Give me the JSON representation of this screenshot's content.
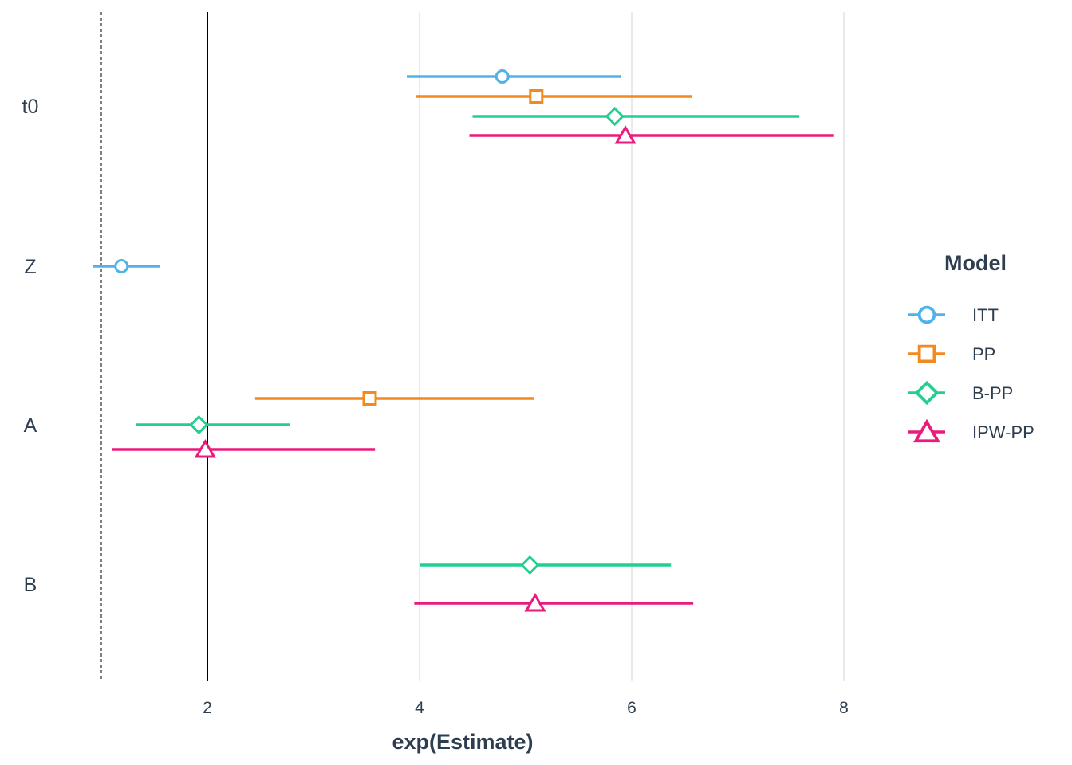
{
  "chart_data": {
    "type": "forest",
    "title": "",
    "xlabel": "exp(Estimate)",
    "ylabel": "",
    "xlim": [
      0.5,
      9.5
    ],
    "x_ticks": [
      2,
      4,
      6,
      8
    ],
    "x_tick_labels": [
      "2",
      "4",
      "6",
      "8"
    ],
    "reference_lines": [
      {
        "x": 1,
        "style": "dashed"
      },
      {
        "x": 2,
        "style": "solid"
      }
    ],
    "grid": "vertical major",
    "categories": [
      "t0",
      "Z",
      "A",
      "B"
    ],
    "legend": {
      "title": "Model",
      "placement": "right",
      "entries": [
        {
          "name": "ITT",
          "color": "#4fb3ea",
          "shape": "circle"
        },
        {
          "name": "PP",
          "color": "#f28a1e",
          "shape": "square"
        },
        {
          "name": "B-PP",
          "color": "#22cf8f",
          "shape": "diamond"
        },
        {
          "name": "IPW-PP",
          "color": "#ea1b7d",
          "shape": "triangle"
        }
      ]
    },
    "series": [
      {
        "name": "ITT",
        "points": [
          {
            "category": "t0",
            "estimate": 4.78,
            "lower": 3.88,
            "upper": 5.9
          },
          {
            "category": "Z",
            "estimate": 1.19,
            "lower": 0.92,
            "upper": 1.55
          }
        ]
      },
      {
        "name": "PP",
        "points": [
          {
            "category": "t0",
            "estimate": 5.1,
            "lower": 3.97,
            "upper": 6.57
          },
          {
            "category": "A",
            "estimate": 3.53,
            "lower": 2.45,
            "upper": 5.08
          }
        ]
      },
      {
        "name": "B-PP",
        "points": [
          {
            "category": "t0",
            "estimate": 5.84,
            "lower": 4.5,
            "upper": 7.58
          },
          {
            "category": "A",
            "estimate": 1.92,
            "lower": 1.33,
            "upper": 2.78
          },
          {
            "category": "B",
            "estimate": 5.04,
            "lower": 4.0,
            "upper": 6.37
          }
        ]
      },
      {
        "name": "IPW-PP",
        "points": [
          {
            "category": "t0",
            "estimate": 5.94,
            "lower": 4.47,
            "upper": 7.9
          },
          {
            "category": "A",
            "estimate": 1.98,
            "lower": 1.1,
            "upper": 3.58
          },
          {
            "category": "B",
            "estimate": 5.09,
            "lower": 3.95,
            "upper": 6.58
          }
        ]
      }
    ]
  }
}
